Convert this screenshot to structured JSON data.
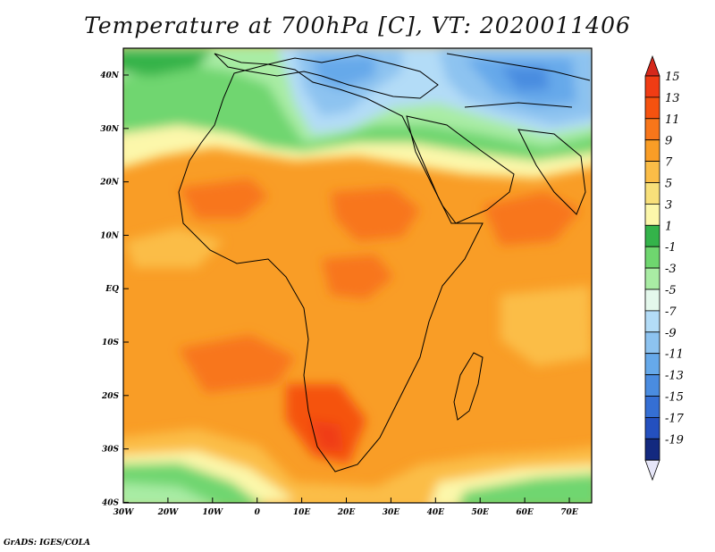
{
  "title": "Temperature at 700hPa [C], VT: 2020011406",
  "credit": "GrADS: IGES/COLA",
  "map": {
    "lat_labels": [
      "40N",
      "30N",
      "20N",
      "10N",
      "EQ",
      "10S",
      "20S",
      "30S",
      "40S"
    ],
    "lon_labels": [
      "30W",
      "20W",
      "10W",
      "0",
      "10E",
      "20E",
      "30E",
      "40E",
      "50E",
      "60E",
      "70E"
    ]
  },
  "colorbar": {
    "levels": [
      {
        "label": "15",
        "color": "#f03c14"
      },
      {
        "label": "13",
        "color": "#f5520f"
      },
      {
        "label": "11",
        "color": "#f8761a"
      },
      {
        "label": "9",
        "color": "#f99d26"
      },
      {
        "label": "7",
        "color": "#fbbd47"
      },
      {
        "label": "5",
        "color": "#f8e07a"
      },
      {
        "label": "3",
        "color": "#fcf7aa"
      },
      {
        "label": "1",
        "color": "#34b34a"
      },
      {
        "label": "-1",
        "color": "#6fd66f"
      },
      {
        "label": "-3",
        "color": "#a9eca4"
      },
      {
        "label": "-5",
        "color": "#e4f8ec"
      },
      {
        "label": "-7",
        "color": "#b3dcf7"
      },
      {
        "label": "-9",
        "color": "#8dc3f0"
      },
      {
        "label": "-11",
        "color": "#66a9ea"
      },
      {
        "label": "-13",
        "color": "#4a8ce0"
      },
      {
        "label": "-15",
        "color": "#356fd4"
      },
      {
        "label": "-17",
        "color": "#2450bf"
      },
      {
        "label": "-19",
        "color": "#13297f"
      }
    ],
    "bottom_extension_color": "#e6e6f8",
    "top_extension_color": "#d5281b"
  }
}
